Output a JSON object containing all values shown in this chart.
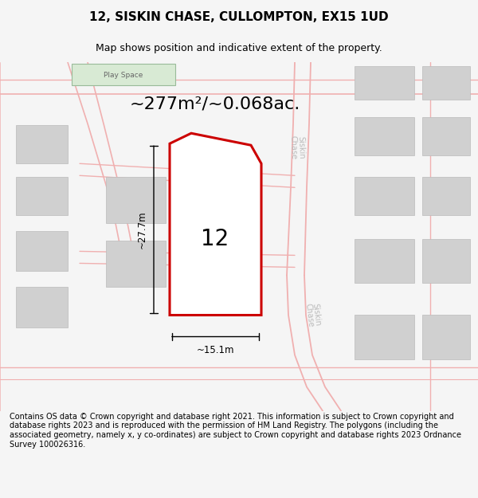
{
  "title": "12, SISKIN CHASE, CULLOMPTON, EX15 1UD",
  "subtitle": "Map shows position and indicative extent of the property.",
  "area_text": "~277m²/~0.068ac.",
  "label_number": "12",
  "dim_width": "~15.1m",
  "dim_height": "~27.7m",
  "footer": "Contains OS data © Crown copyright and database right 2021. This information is subject to Crown copyright and database rights 2023 and is reproduced with the permission of HM Land Registry. The polygons (including the associated geometry, namely x, y co-ordinates) are subject to Crown copyright and database rights 2023 Ordnance Survey 100026316.",
  "bg_color": "#f5f5f5",
  "map_bg": "#ffffff",
  "road_color": "#f0b0b0",
  "building_color": "#d0d0d0",
  "highlight_color": "#cc0000",
  "play_space_color": "#d8ead4",
  "road_label_color": "#bbbbbb",
  "title_fontsize": 11,
  "subtitle_fontsize": 9,
  "area_fontsize": 16,
  "footer_fontsize": 7
}
